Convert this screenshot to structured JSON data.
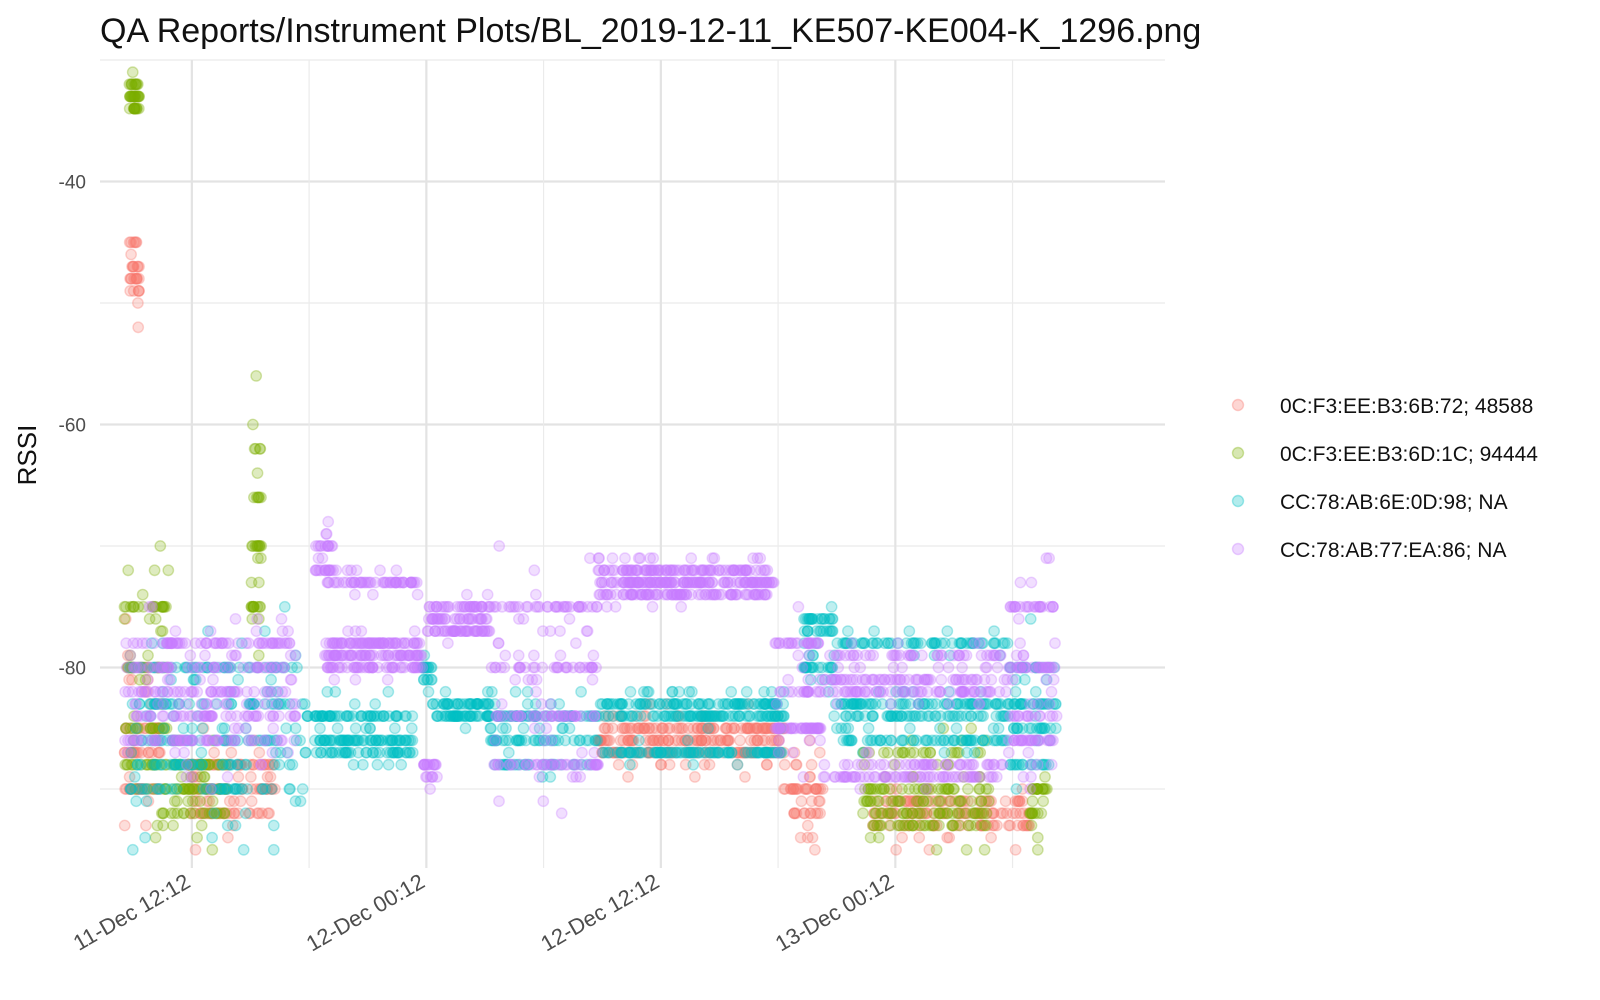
{
  "chart_data": {
    "type": "scatter",
    "title": "QA Reports/Instrument Plots/BL_2019-12-11_KE507-KE004-K_1296.png",
    "xlabel": "",
    "ylabel": "RSSI",
    "x_type": "datetime",
    "xlim": [
      "2019-12-11T07:30",
      "2019-12-13T14:00"
    ],
    "ylim": [
      -96.5,
      -30
    ],
    "y_ticks": [
      -40,
      -60,
      -80
    ],
    "x_ticks": [
      {
        "t": "2019-12-11T12:12",
        "label": "11-Dec 12:12"
      },
      {
        "t": "2019-12-12T00:12",
        "label": "12-Dec 00:12"
      },
      {
        "t": "2019-12-12T12:12",
        "label": "12-Dec 12:12"
      },
      {
        "t": "2019-12-13T00:12",
        "label": "13-Dec 00:12"
      }
    ],
    "x_minor_ticks": [
      "2019-12-11T18:12",
      "2019-12-12T06:12",
      "2019-12-12T18:12",
      "2019-12-13T06:12"
    ],
    "grid": true,
    "legend_position": "right",
    "point_opacity": 0.25,
    "series": [
      {
        "name": "0C:F3:EE:B3:6B:72; 48588",
        "color": "#F8766D",
        "segments": [
          {
            "start": "2019-12-11T09:00",
            "end": "2019-12-11T09:30",
            "levels": [
              -48,
              -47,
              -49,
              -45
            ],
            "spread": 4,
            "density": 30
          },
          {
            "start": "2019-12-11T08:45",
            "end": "2019-12-11T10:45",
            "levels": [
              -80,
              -85,
              -87,
              -90
            ],
            "spread": 4,
            "density": 80
          },
          {
            "start": "2019-12-11T12:00",
            "end": "2019-12-11T16:30",
            "levels": [
              -90,
              -92,
              -88
            ],
            "spread": 3,
            "density": 120
          },
          {
            "start": "2019-12-12T09:00",
            "end": "2019-12-12T18:30",
            "levels": [
              -85,
              -86,
              -87
            ],
            "spread": 2,
            "density": 260
          },
          {
            "start": "2019-12-12T18:30",
            "end": "2019-12-12T20:30",
            "levels": [
              -88,
              -90,
              -92
            ],
            "spread": 3,
            "density": 50
          },
          {
            "start": "2019-12-12T23:00",
            "end": "2019-12-13T07:30",
            "levels": [
              -92,
              -91,
              -93
            ],
            "spread": 2,
            "density": 140
          }
        ]
      },
      {
        "name": "0C:F3:EE:B3:6D:1C; 94444",
        "color": "#7CAE00",
        "segments": [
          {
            "start": "2019-12-11T09:00",
            "end": "2019-12-11T09:30",
            "levels": [
              -33,
              -34,
              -32
            ],
            "spread": 1,
            "density": 40
          },
          {
            "start": "2019-12-11T08:45",
            "end": "2019-12-11T11:00",
            "levels": [
              -75,
              -80,
              -85,
              -88
            ],
            "spread": 6,
            "density": 90
          },
          {
            "start": "2019-12-11T10:30",
            "end": "2019-12-11T14:00",
            "levels": [
              -88,
              -90,
              -92
            ],
            "spread": 3,
            "density": 90
          },
          {
            "start": "2019-12-11T15:15",
            "end": "2019-12-11T15:45",
            "levels": [
              -62,
              -66,
              -70,
              -75
            ],
            "spread": 6,
            "density": 40
          },
          {
            "start": "2019-12-12T22:30",
            "end": "2019-12-13T05:00",
            "levels": [
              -90,
              -91,
              -92,
              -93,
              -87
            ],
            "spread": 2,
            "density": 170
          },
          {
            "start": "2019-12-13T07:00",
            "end": "2019-12-13T08:00",
            "levels": [
              -90,
              -92
            ],
            "spread": 3,
            "density": 30
          }
        ]
      },
      {
        "name": "CC:78:AB:6E:0D:98; NA",
        "color": "#00BFC4",
        "segments": [
          {
            "start": "2019-12-11T09:00",
            "end": "2019-12-11T18:00",
            "levels": [
              -80,
              -83,
              -86,
              -88,
              -90
            ],
            "spread": 5,
            "density": 250
          },
          {
            "start": "2019-12-11T18:00",
            "end": "2019-12-11T23:30",
            "levels": [
              -84,
              -86,
              -87
            ],
            "spread": 2,
            "density": 170
          },
          {
            "start": "2019-12-12T00:00",
            "end": "2019-12-12T00:30",
            "levels": [
              -80,
              -81
            ],
            "spread": 1,
            "density": 20
          },
          {
            "start": "2019-12-12T00:30",
            "end": "2019-12-12T03:30",
            "levels": [
              -83,
              -84
            ],
            "spread": 1,
            "density": 80
          },
          {
            "start": "2019-12-12T03:30",
            "end": "2019-12-12T09:00",
            "levels": [
              -84,
              -86,
              -88
            ],
            "spread": 3,
            "density": 130
          },
          {
            "start": "2019-12-12T09:00",
            "end": "2019-12-12T18:30",
            "levels": [
              -83,
              -84,
              -87
            ],
            "spread": 1,
            "density": 280
          },
          {
            "start": "2019-12-12T19:30",
            "end": "2019-12-12T21:00",
            "levels": [
              -76,
              -77,
              -80
            ],
            "spread": 2,
            "density": 60
          },
          {
            "start": "2019-12-12T21:00",
            "end": "2019-12-13T06:00",
            "levels": [
              -78,
              -83,
              -84,
              -86
            ],
            "spread": 1,
            "density": 260
          },
          {
            "start": "2019-12-13T06:00",
            "end": "2019-12-13T08:30",
            "levels": [
              -80,
              -83,
              -85,
              -88
            ],
            "spread": 4,
            "density": 80
          }
        ]
      },
      {
        "name": "CC:78:AB:77:EA:86; NA",
        "color": "#C77CFF",
        "segments": [
          {
            "start": "2019-12-11T08:45",
            "end": "2019-12-11T17:30",
            "levels": [
              -78,
              -80,
              -82,
              -84,
              -86
            ],
            "spread": 5,
            "density": 300
          },
          {
            "start": "2019-12-11T18:30",
            "end": "2019-12-11T19:30",
            "levels": [
              -70,
              -72
            ],
            "spread": 2,
            "density": 30
          },
          {
            "start": "2019-12-11T19:00",
            "end": "2019-12-12T00:00",
            "levels": [
              -73,
              -78,
              -79,
              -80
            ],
            "spread": 1,
            "density": 230
          },
          {
            "start": "2019-12-12T00:00",
            "end": "2019-12-12T00:45",
            "levels": [
              -88,
              -89
            ],
            "spread": 1,
            "density": 20
          },
          {
            "start": "2019-12-12T00:15",
            "end": "2019-12-12T03:30",
            "levels": [
              -75,
              -76,
              -77
            ],
            "spread": 1,
            "density": 110
          },
          {
            "start": "2019-12-12T03:30",
            "end": "2019-12-12T09:00",
            "levels": [
              -75,
              -80,
              -84,
              -88
            ],
            "spread": 5,
            "density": 180
          },
          {
            "start": "2019-12-12T09:00",
            "end": "2019-12-12T18:00",
            "levels": [
              -72,
              -73,
              -74
            ],
            "spread": 1,
            "density": 320
          },
          {
            "start": "2019-12-12T18:00",
            "end": "2019-12-12T20:30",
            "levels": [
              -78,
              -82,
              -85
            ],
            "spread": 5,
            "density": 90
          },
          {
            "start": "2019-12-12T20:30",
            "end": "2019-12-13T06:00",
            "levels": [
              -79,
              -81,
              -82,
              -88,
              -89
            ],
            "spread": 1,
            "density": 280
          },
          {
            "start": "2019-12-13T06:00",
            "end": "2019-12-13T08:30",
            "levels": [
              -75,
              -80,
              -84,
              -86
            ],
            "spread": 5,
            "density": 110
          }
        ]
      }
    ]
  }
}
